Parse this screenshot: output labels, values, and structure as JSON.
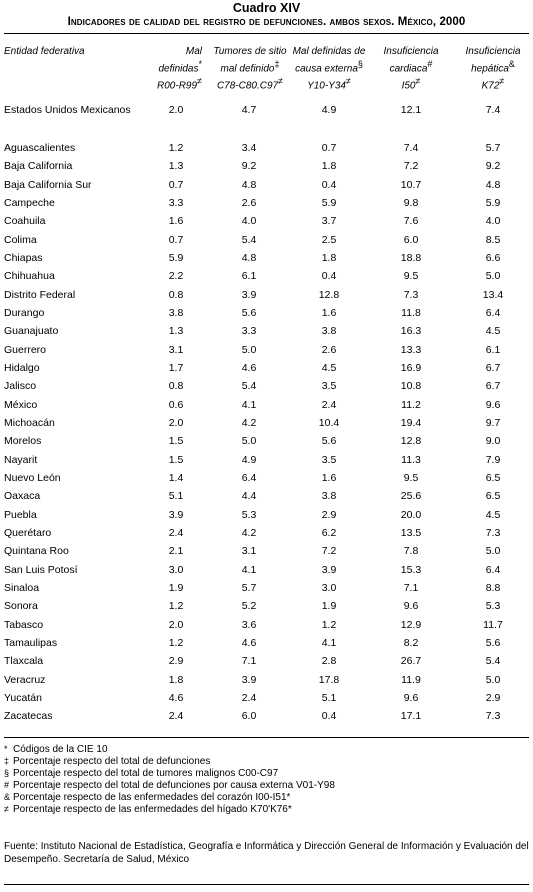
{
  "title": "Cuadro XIV",
  "subtitle": "Indicadores de calidad del registro de defunciones. ambos sexos. México, 2000",
  "headers": {
    "entity": "Entidad federativa",
    "col1": {
      "line1": "Mal",
      "line2": "definidas",
      "mark2": "*",
      "line3": "R00-R99",
      "mark3": "≠"
    },
    "col2": {
      "line1": "Tumores de sitio",
      "line2": "mal definido",
      "mark2": "‡",
      "line3": "C78-C80.C97",
      "mark3": "≠"
    },
    "col3": {
      "line1": "Mal definidas de",
      "line2": "causa externa",
      "mark2": "§",
      "line3": "Y10-Y34",
      "mark3": "≠"
    },
    "col4": {
      "line1": "Insuficiencia",
      "line2": "cardiaca",
      "mark2": "#",
      "line3": "I50",
      "mark3": "≠"
    },
    "col5": {
      "line1": "Insuficiencia",
      "line2": "hepática",
      "mark2": "&",
      "line3": "K72",
      "mark3": "≠"
    }
  },
  "rows": [
    [
      "Estados Unidos Mexicanos",
      "2.0",
      "4.7",
      "4.9",
      "12.1",
      "7.4"
    ],
    [
      "Aguascalientes",
      "1.2",
      "3.4",
      "0.7",
      "7.4",
      "5.7"
    ],
    [
      "Baja California",
      "1.3",
      "9.2",
      "1.8",
      "7.2",
      "9.2"
    ],
    [
      "Baja California Sur",
      "0.7",
      "4.8",
      "0.4",
      "10.7",
      "4.8"
    ],
    [
      "Campeche",
      "3.3",
      "2.6",
      "5.9",
      "9.8",
      "5.9"
    ],
    [
      "Coahuila",
      "1.6",
      "4.0",
      "3.7",
      "7.6",
      "4.0"
    ],
    [
      "Colima",
      "0.7",
      "5.4",
      "2.5",
      "6.0",
      "8.5"
    ],
    [
      "Chiapas",
      "5.9",
      "4.8",
      "1.8",
      "18.8",
      "6.6"
    ],
    [
      "Chihuahua",
      "2.2",
      "6.1",
      "0.4",
      "9.5",
      "5.0"
    ],
    [
      "Distrito Federal",
      "0.8",
      "3.9",
      "12.8",
      "7.3",
      "13.4"
    ],
    [
      "Durango",
      "3.8",
      "5.6",
      "1.6",
      "11.8",
      "6.4"
    ],
    [
      "Guanajuato",
      "1.3",
      "3.3",
      "3.8",
      "16.3",
      "4.5"
    ],
    [
      "Guerrero",
      "3.1",
      "5.0",
      "2.6",
      "13.3",
      "6.1"
    ],
    [
      "Hidalgo",
      "1.7",
      "4.6",
      "4.5",
      "16.9",
      "6.7"
    ],
    [
      "Jalisco",
      "0.8",
      "5.4",
      "3.5",
      "10.8",
      "6.7"
    ],
    [
      "México",
      "0.6",
      "4.1",
      "2.4",
      "11.2",
      "9.6"
    ],
    [
      "Michoacán",
      "2.0",
      "4.2",
      "10.4",
      "19.4",
      "9.7"
    ],
    [
      "Morelos",
      "1.5",
      "5.0",
      "5.6",
      "12.8",
      "9.0"
    ],
    [
      "Nayarit",
      "1.5",
      "4.9",
      "3.5",
      "11.3",
      "7.9"
    ],
    [
      "Nuevo León",
      "1.4",
      "6.4",
      "1.6",
      "9.5",
      "6.5"
    ],
    [
      "Oaxaca",
      "5.1",
      "4.4",
      "3.8",
      "25.6",
      "6.5"
    ],
    [
      "Puebla",
      "3.9",
      "5.3",
      "2.9",
      "20.0",
      "4.5"
    ],
    [
      "Querétaro",
      "2.4",
      "4.2",
      "6.2",
      "13.5",
      "7.3"
    ],
    [
      "Quintana Roo",
      "2.1",
      "3.1",
      "7.2",
      "7.8",
      "5.0"
    ],
    [
      "San Luis Potosí",
      "3.0",
      "4.1",
      "3.9",
      "15.3",
      "6.4"
    ],
    [
      "Sinaloa",
      "1.9",
      "5.7",
      "3.0",
      "7.1",
      "8.8"
    ],
    [
      "Sonora",
      "1.2",
      "5.2",
      "1.9",
      "9.6",
      "5.3"
    ],
    [
      "Tabasco",
      "2.0",
      "3.6",
      "1.2",
      "12.9",
      "11.7"
    ],
    [
      "Tamaulipas",
      "1.2",
      "4.6",
      "4.1",
      "8.2",
      "5.6"
    ],
    [
      "Tlaxcala",
      "2.9",
      "7.1",
      "2.8",
      "26.7",
      "5.4"
    ],
    [
      "Veracruz",
      "1.8",
      "3.9",
      "17.8",
      "11.9",
      "5.0"
    ],
    [
      "Yucatán",
      "4.6",
      "2.4",
      "5.1",
      "9.6",
      "2.9"
    ],
    [
      "Zacatecas",
      "2.4",
      "6.0",
      "0.4",
      "17.1",
      "7.3"
    ]
  ],
  "notes": [
    {
      "sym": "*",
      "text": "Códigos de la CIE 10"
    },
    {
      "sym": "‡",
      "text": "Porcentaje respecto del total de defunciones"
    },
    {
      "sym": "§",
      "text": "Porcentaje respecto del total de tumores malignos C00-C97"
    },
    {
      "sym": "#",
      "text": "Porcentaje respecto del total de defunciones por causa externa V01-Y98"
    },
    {
      "sym": "&",
      "text": "Porcentaje respecto de las enfermedades del corazón I00-I51*"
    },
    {
      "sym": "≠",
      "text": "Porcentaje respecto de las enfermedades del hígado K70'K76*"
    }
  ],
  "source": "Fuente: Instituto Nacional de Estadística, Geografía e Informática y Dirección General de Información y Evaluación del Desempeño.  Secretaría de Salud, México"
}
